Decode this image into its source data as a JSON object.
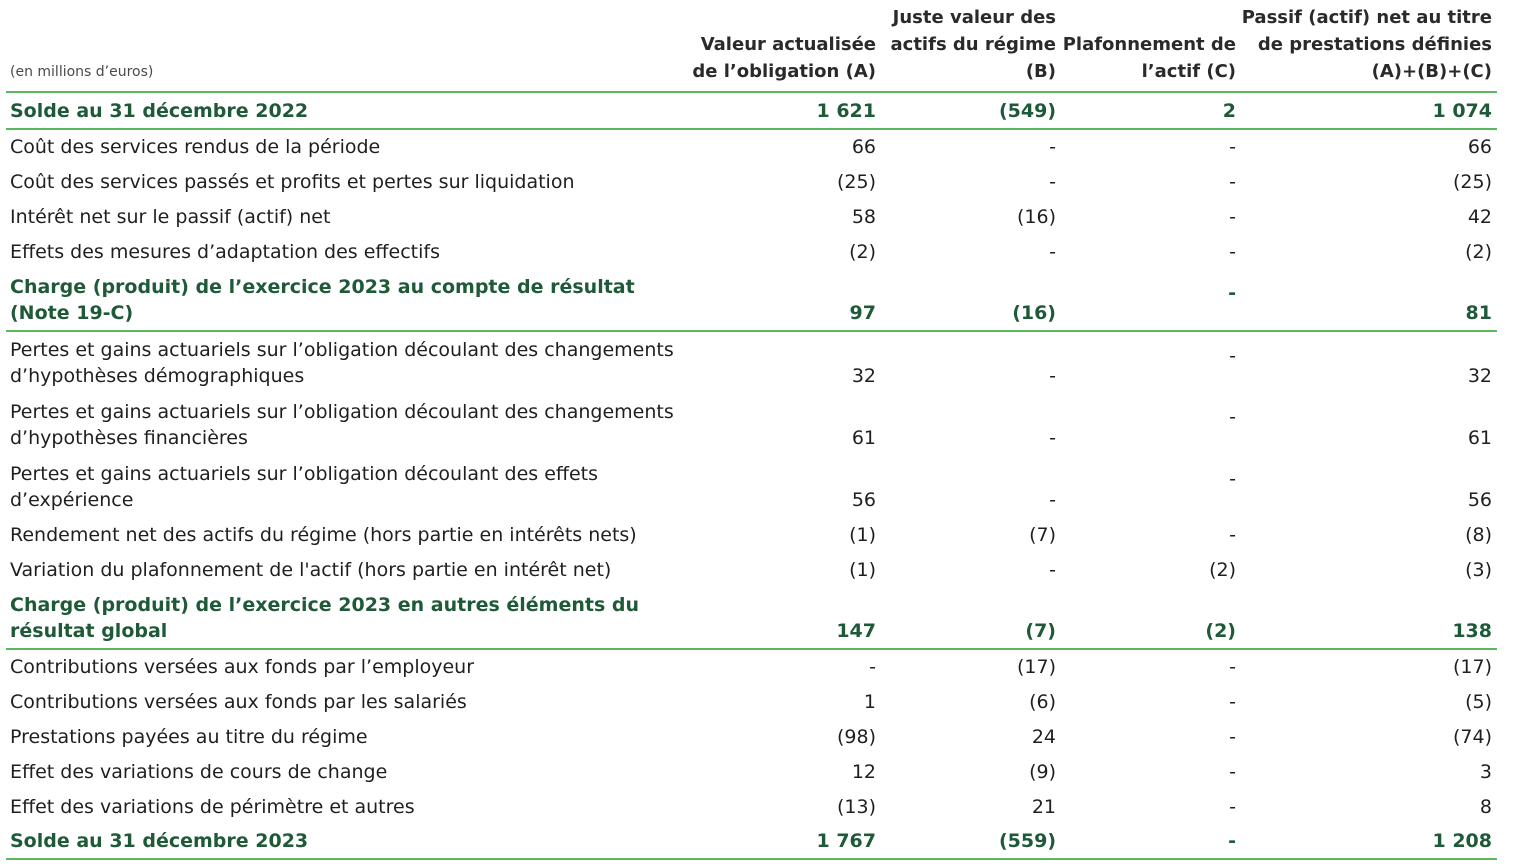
{
  "header": {
    "unit": "(en millions d’euros)",
    "col_a": "Valeur actualisée de l’obligation (A)",
    "col_b": "Juste valeur des actifs du régime (B)",
    "col_c": "Plafonnement de l’actif (C)",
    "col_d": "Passif (actif) net au titre de prestations définies (A)+(B)+(C)"
  },
  "rows": [
    {
      "label": "Solde au 31 décembre 2022",
      "a": "1 621",
      "b": "(549)",
      "c": "2",
      "d": "1 074"
    },
    {
      "label": "Coût des services rendus de la période",
      "a": "66",
      "b": "-",
      "c": "-",
      "d": "66"
    },
    {
      "label": "Coût des services passés et profits et pertes sur liquidation",
      "a": "(25)",
      "b": "-",
      "c": "-",
      "d": "(25)"
    },
    {
      "label": "Intérêt net sur le passif (actif) net",
      "a": "58",
      "b": "(16)",
      "c": "-",
      "d": "42"
    },
    {
      "label": "Effets des mesures d’adaptation des effectifs",
      "a": "(2)",
      "b": "-",
      "c": "-",
      "d": "(2)"
    },
    {
      "label": "Charge (produit) de l’exercice 2023 au compte de résultat (Note 19-C)",
      "a": "97",
      "b": "(16)",
      "c": "-",
      "d": "81"
    },
    {
      "label": "Pertes et gains actuariels sur l’obligation découlant des changements d’hypothèses démographiques",
      "a": "32",
      "b": "-",
      "c": "-",
      "d": "32"
    },
    {
      "label": "Pertes et gains actuariels sur l’obligation découlant des changements d’hypothèses financières",
      "a": "61",
      "b": "-",
      "c": "-",
      "d": "61"
    },
    {
      "label": "Pertes et gains actuariels sur l’obligation découlant des effets d’expérience",
      "a": "56",
      "b": "-",
      "c": "-",
      "d": "56"
    },
    {
      "label": "Rendement net des actifs du régime (hors partie en intérêts nets)",
      "a": "(1)",
      "b": "(7)",
      "c": "-",
      "d": "(8)"
    },
    {
      "label": "Variation du plafonnement de l'actif (hors partie en intérêt net)",
      "a": "(1)",
      "b": "-",
      "c": "(2)",
      "d": "(3)"
    },
    {
      "label": "Charge (produit) de l’exercice 2023 en autres éléments du résultat global",
      "a": "147",
      "b": "(7)",
      "c": "(2)",
      "d": "138"
    },
    {
      "label": "Contributions versées aux fonds par l’employeur",
      "a": "-",
      "b": "(17)",
      "c": "-",
      "d": "(17)"
    },
    {
      "label": "Contributions versées aux fonds par les salariés",
      "a": "1",
      "b": "(6)",
      "c": "-",
      "d": "(5)"
    },
    {
      "label": "Prestations payées au titre du régime",
      "a": "(98)",
      "b": "24",
      "c": "-",
      "d": "(74)"
    },
    {
      "label": "Effet des variations de cours de change",
      "a": "12",
      "b": "(9)",
      "c": "-",
      "d": "3"
    },
    {
      "label": "Effet des variations de périmètre et autres",
      "a": "(13)",
      "b": "21",
      "c": "-",
      "d": "8"
    },
    {
      "label": "Solde au 31 décembre 2023",
      "a": "1 767",
      "b": "(559)",
      "c": "-",
      "d": "1 208"
    }
  ],
  "colors": {
    "accent_line": "#5cb85c",
    "total_text": "#1f5a38",
    "body_text": "#1f1f1f"
  }
}
